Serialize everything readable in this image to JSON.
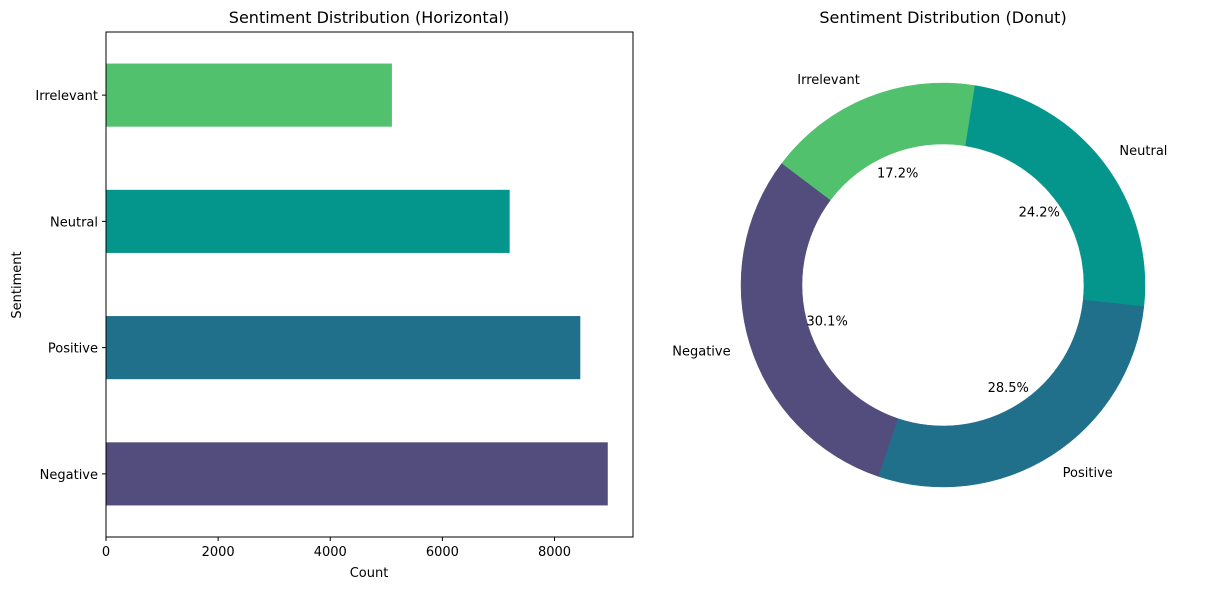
{
  "chart_data": [
    {
      "type": "bar",
      "orientation": "horizontal",
      "title": "Sentiment Distribution (Horizontal)",
      "xlabel": "Count",
      "ylabel": "Sentiment",
      "categories": [
        "Irrelevant",
        "Neutral",
        "Positive",
        "Negative"
      ],
      "values": [
        5100,
        7200,
        8460,
        8950
      ],
      "colors": [
        "#52c16d",
        "#04968c",
        "#20708c",
        "#534d7e"
      ],
      "xlim": [
        0,
        9400
      ],
      "xticks": [
        0,
        2000,
        4000,
        6000,
        8000
      ],
      "grid": false
    },
    {
      "type": "pie",
      "style": "donut",
      "title": "Sentiment Distribution (Donut)",
      "labels": [
        "Neutral",
        "Positive",
        "Negative",
        "Irrelevant"
      ],
      "values": [
        24.2,
        28.5,
        30.1,
        17.2
      ],
      "pct_labels": [
        "24.2%",
        "28.5%",
        "30.1%",
        "17.2%"
      ],
      "colors": [
        "#04968c",
        "#20708c",
        "#534d7e",
        "#52c16d"
      ]
    }
  ]
}
